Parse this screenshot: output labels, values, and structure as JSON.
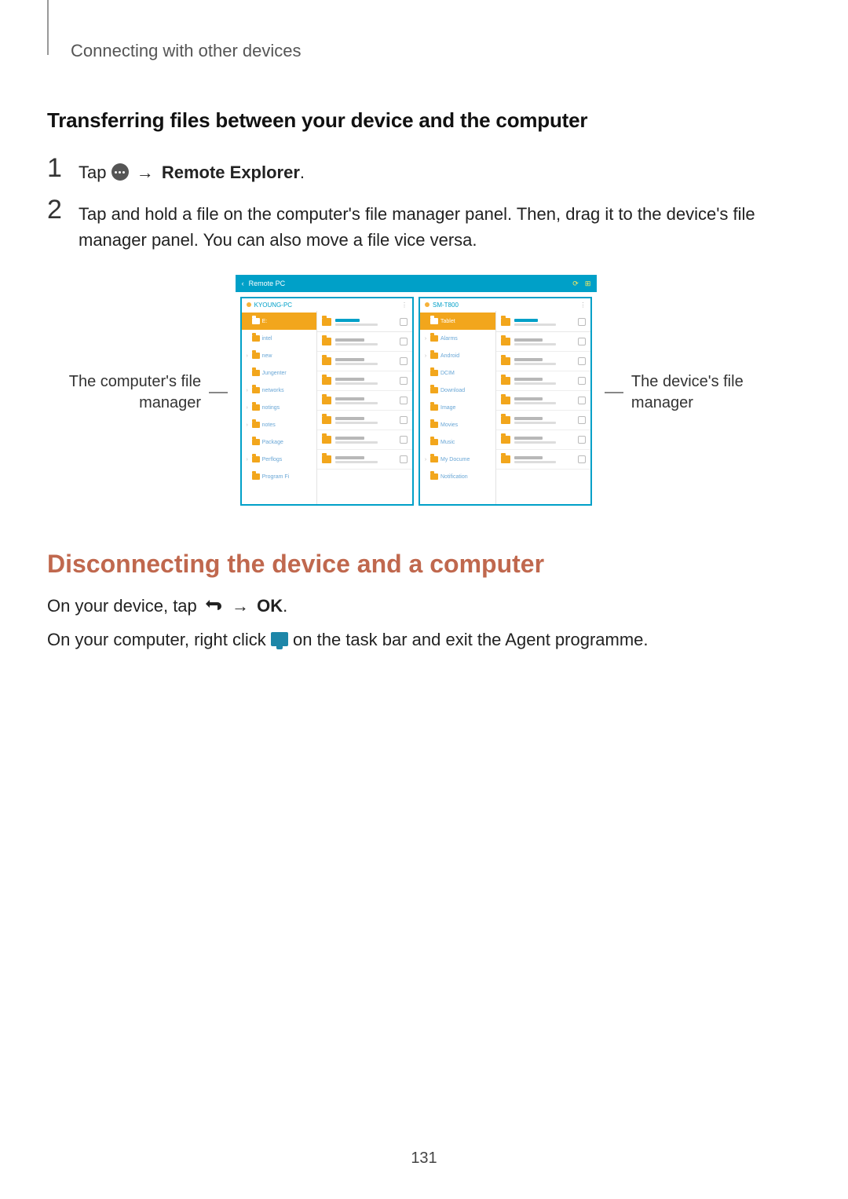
{
  "header": {
    "breadcrumb": "Connecting with other devices"
  },
  "section1": {
    "title": "Transferring files between your device and the computer",
    "step1": {
      "num": "1",
      "tap": "Tap ",
      "arrow": " → ",
      "target": "Remote Explorer",
      "tail": "."
    },
    "step2": {
      "num": "2",
      "text": "Tap and hold a file on the computer's file manager panel. Then, drag it to the device's file manager panel. You can also move a file vice versa."
    }
  },
  "figure": {
    "titlebar_label": "Remote PC",
    "left_callout": "The computer's file manager",
    "right_callout": "The device's file manager",
    "left_panel": {
      "header": "KYOUNG-PC",
      "tree": [
        {
          "label": "E:",
          "hi": true,
          "chev": ""
        },
        {
          "label": "intel",
          "hi": false,
          "chev": " "
        },
        {
          "label": "new",
          "hi": false,
          "chev": "›"
        },
        {
          "label": "Jungenter",
          "hi": false,
          "chev": " "
        },
        {
          "label": "networks",
          "hi": false,
          "chev": "›"
        },
        {
          "label": "notings",
          "hi": false,
          "chev": "›"
        },
        {
          "label": "notes",
          "hi": false,
          "chev": "›"
        },
        {
          "label": "Package",
          "hi": false,
          "chev": " "
        },
        {
          "label": "Perflogs",
          "hi": false,
          "chev": "›"
        },
        {
          "label": "Program Fi",
          "hi": false,
          "chev": " "
        }
      ],
      "list_rows": 8
    },
    "right_panel": {
      "header": "SM-T800",
      "tree": [
        {
          "label": "Tablet",
          "hi": true,
          "chev": ""
        },
        {
          "label": "Alarms",
          "hi": false,
          "chev": "›"
        },
        {
          "label": "Android",
          "hi": false,
          "chev": "›"
        },
        {
          "label": "DCIM",
          "hi": false,
          "chev": " "
        },
        {
          "label": "Download",
          "hi": false,
          "chev": " "
        },
        {
          "label": "Image",
          "hi": false,
          "chev": " "
        },
        {
          "label": "Movies",
          "hi": false,
          "chev": " "
        },
        {
          "label": "Music",
          "hi": false,
          "chev": " "
        },
        {
          "label": "My Docume",
          "hi": false,
          "chev": "›"
        },
        {
          "label": "Notification",
          "hi": false,
          "chev": " "
        }
      ],
      "list_rows": 8
    }
  },
  "section2": {
    "title": "Disconnecting the device and a computer",
    "p1_a": "On your device, tap ",
    "p1_arrow": " → ",
    "p1_b": "OK",
    "p1_tail": ".",
    "p2_a": "On your computer, right click ",
    "p2_b": " on the task bar and exit the Agent programme."
  },
  "page_number": "131",
  "colors": {
    "accent_teal": "#00a0c8",
    "folder_orange": "#f2a61c",
    "heading_orange": "#c0684e"
  }
}
